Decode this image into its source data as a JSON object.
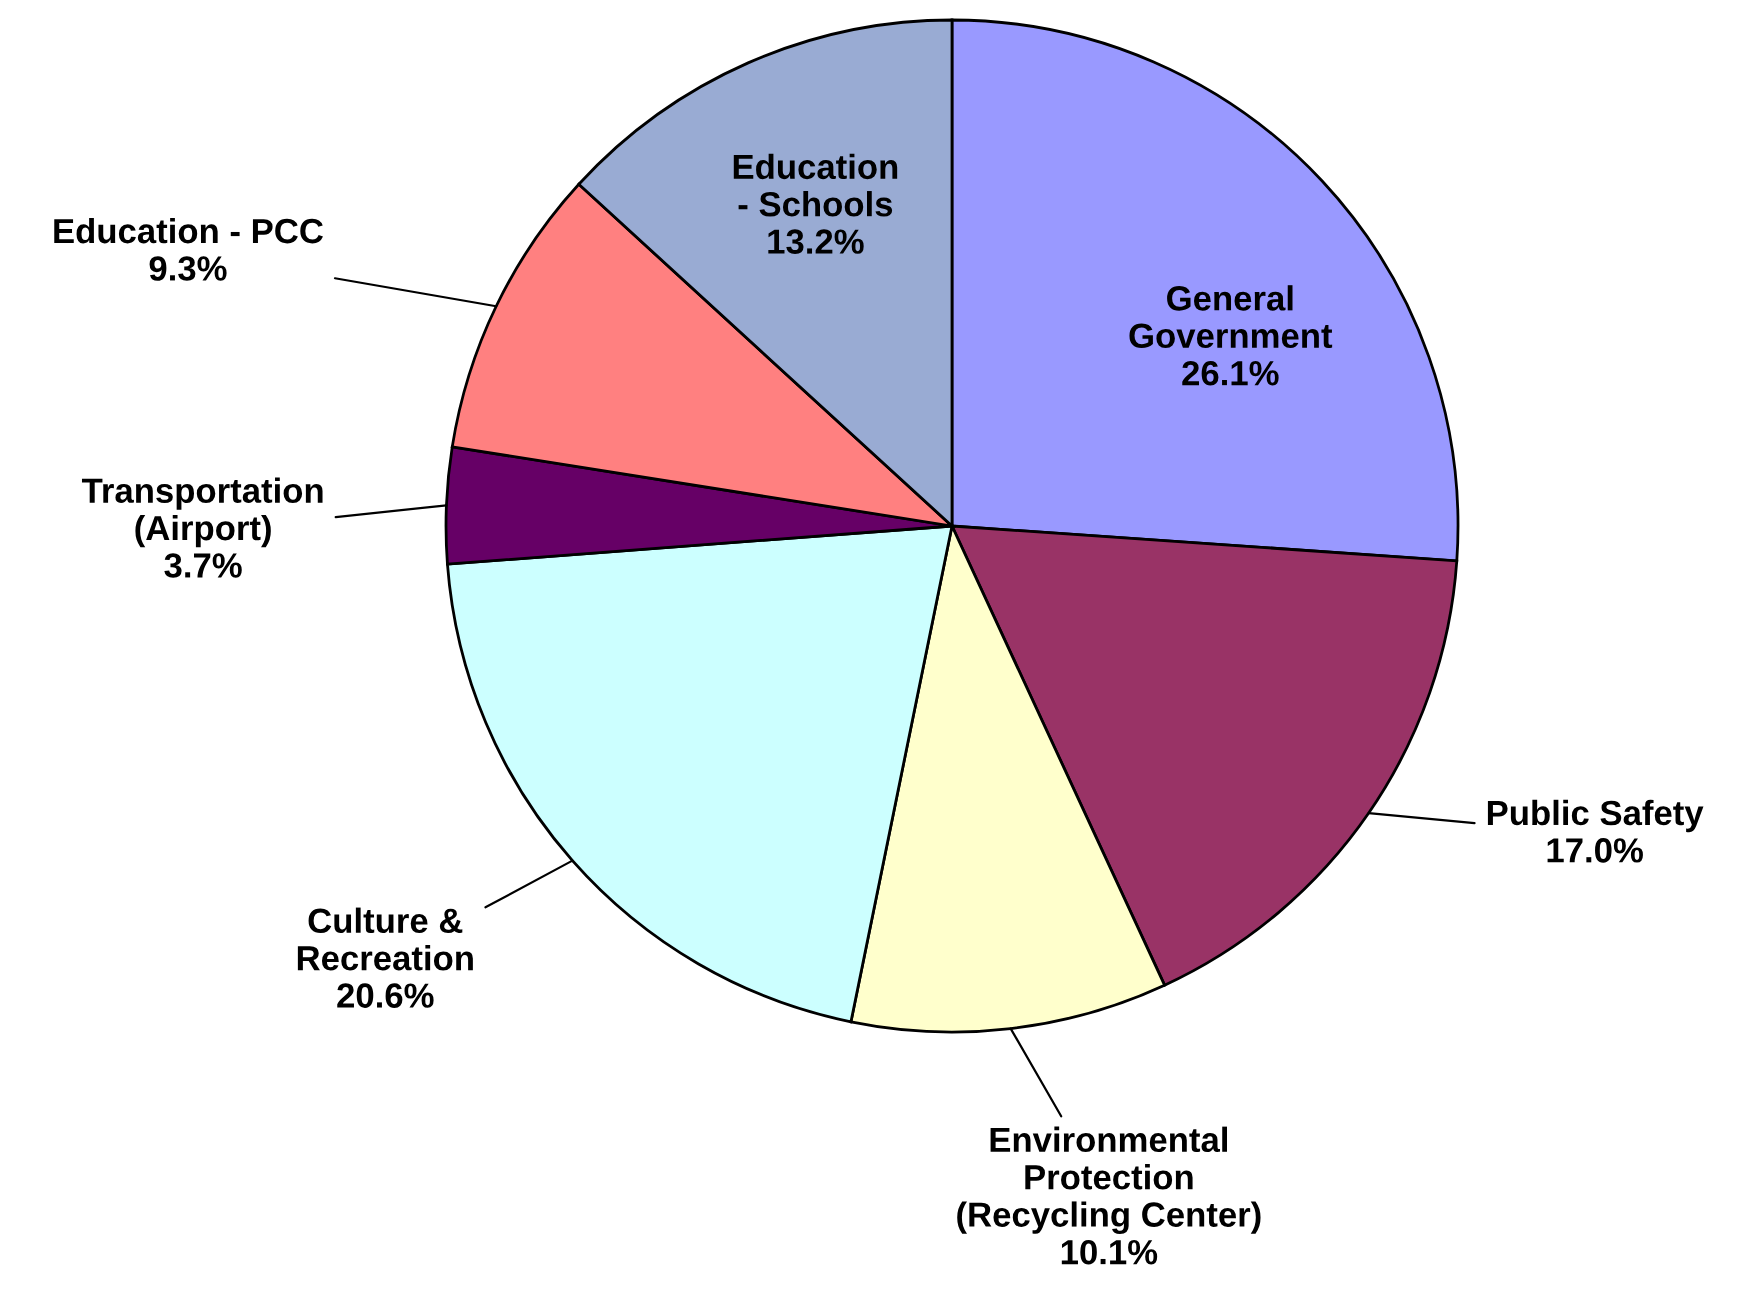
{
  "chart_data": {
    "type": "pie",
    "categories": [
      "General\nGovernment",
      "Public Safety",
      "Environmental\nProtection\n(Recycling Center)",
      "Culture &\nRecreation",
      "Transportation\n(Airport)",
      "Education - PCC",
      "Education\n- Schools"
    ],
    "values": [
      26.1,
      17.0,
      10.1,
      20.6,
      3.7,
      9.3,
      13.2
    ],
    "value_labels": [
      "26.1%",
      "17.0%",
      "10.1%",
      "20.6%",
      "3.7%",
      "9.3%",
      "13.2%"
    ],
    "colors": [
      "#9999ff",
      "#993366",
      "#ffffcc",
      "#ccffff",
      "#660066",
      "#ff8080",
      "#99abd3"
    ],
    "legend": false
  }
}
